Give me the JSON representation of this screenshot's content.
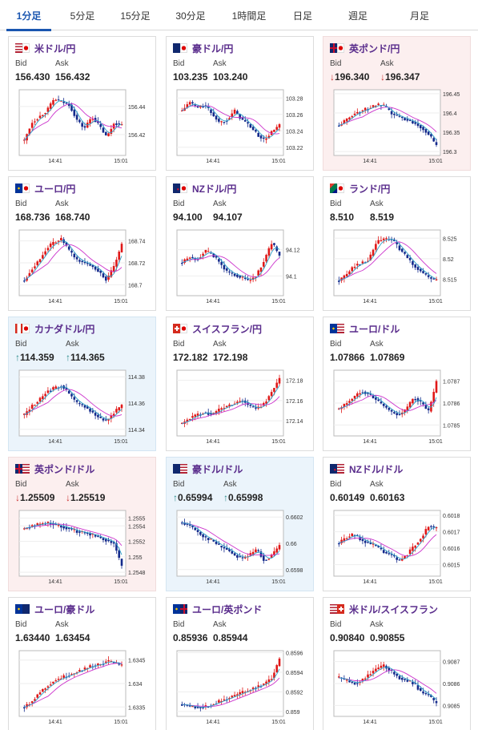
{
  "tabs": [
    "1分足",
    "5分足",
    "15分足",
    "30分足",
    "1時間足",
    "日足",
    "週足",
    "月足"
  ],
  "active_tab": 0,
  "labels": {
    "bid": "Bid",
    "ask": "Ask"
  },
  "colors": {
    "up": "#e01818",
    "down": "#142a8c",
    "ma1": "#cc33cc",
    "ma2": "#2ca0c8"
  },
  "cards": [
    {
      "name": "米ドル/円",
      "flags": [
        "us",
        "jp"
      ],
      "bid": "156.430",
      "ask": "156.432",
      "state": "none",
      "chart_data": {
        "type": "candlestick",
        "x_ticks": [
          "14:41",
          "15:01"
        ],
        "y_ticks": [
          "156.44",
          "156.42"
        ],
        "y_range": [
          156.405,
          156.452
        ],
        "shape": [
          0.2,
          0.5,
          0.6,
          0.7,
          0.9,
          0.85,
          0.8,
          0.55,
          0.4,
          0.6,
          0.45,
          0.25,
          0.5,
          0.45
        ]
      }
    },
    {
      "name": "豪ドル/円",
      "flags": [
        "au",
        "jp"
      ],
      "bid": "103.235",
      "ask": "103.240",
      "state": "none",
      "chart_data": {
        "type": "candlestick",
        "x_ticks": [
          "14:41",
          "15:01"
        ],
        "y_ticks": [
          "103.28",
          "103.26",
          "103.24",
          "103.22"
        ],
        "y_range": [
          103.21,
          103.29
        ],
        "shape": [
          0.7,
          0.85,
          0.75,
          0.8,
          0.65,
          0.5,
          0.55,
          0.7,
          0.55,
          0.45,
          0.3,
          0.2,
          0.35,
          0.45
        ]
      }
    },
    {
      "name": "英ポンド/円",
      "flags": [
        "gb",
        "jp"
      ],
      "bid": "196.340",
      "ask": "196.347",
      "arrow": "down",
      "state": "down",
      "chart_data": {
        "type": "candlestick",
        "x_ticks": [
          "14:41",
          "15:01"
        ],
        "y_ticks": [
          "196.45",
          "196.4",
          "196.35",
          "196.3"
        ],
        "y_range": [
          196.29,
          196.46
        ],
        "shape": [
          0.45,
          0.55,
          0.65,
          0.7,
          0.75,
          0.8,
          0.78,
          0.65,
          0.6,
          0.55,
          0.5,
          0.42,
          0.3,
          0.1
        ]
      }
    },
    {
      "name": "ユーロ/円",
      "flags": [
        "eu",
        "jp"
      ],
      "bid": "168.736",
      "ask": "168.740",
      "state": "none",
      "chart_data": {
        "type": "candlestick",
        "x_ticks": [
          "14:41",
          "15:01"
        ],
        "y_ticks": [
          "168.74",
          "168.72",
          "168.7"
        ],
        "y_range": [
          168.69,
          168.75
        ],
        "shape": [
          0.2,
          0.4,
          0.55,
          0.75,
          0.85,
          0.9,
          0.7,
          0.55,
          0.5,
          0.45,
          0.35,
          0.2,
          0.45,
          0.8
        ]
      }
    },
    {
      "name": "NZドル/円",
      "flags": [
        "nz",
        "jp"
      ],
      "bid": "94.100",
      "ask": "94.107",
      "state": "none",
      "chart_data": {
        "type": "candlestick",
        "x_ticks": [
          "14:41",
          "15:01"
        ],
        "y_ticks": [
          "94.12",
          "94.1"
        ],
        "y_range": [
          94.085,
          94.135
        ],
        "shape": [
          0.5,
          0.6,
          0.55,
          0.7,
          0.65,
          0.5,
          0.35,
          0.3,
          0.25,
          0.2,
          0.3,
          0.55,
          0.85,
          0.6
        ]
      }
    },
    {
      "name": "ランド/円",
      "flags": [
        "za",
        "jp"
      ],
      "bid": "8.510",
      "ask": "8.519",
      "state": "none",
      "chart_data": {
        "type": "candlestick",
        "x_ticks": [
          "14:41",
          "15:01"
        ],
        "y_ticks": [
          "8.525",
          "8.52",
          "8.515"
        ],
        "y_range": [
          8.511,
          8.527
        ],
        "shape": [
          0.2,
          0.3,
          0.45,
          0.5,
          0.55,
          0.85,
          0.9,
          0.9,
          0.75,
          0.6,
          0.45,
          0.35,
          0.25,
          0.2
        ]
      }
    },
    {
      "name": "カナダドル/円",
      "flags": [
        "ca",
        "jp"
      ],
      "bid": "114.359",
      "ask": "114.365",
      "arrow": "up",
      "state": "up",
      "chart_data": {
        "type": "candlestick",
        "x_ticks": [
          "14:41",
          "15:01"
        ],
        "y_ticks": [
          "114.38",
          "114.36",
          "114.34"
        ],
        "y_range": [
          114.335,
          114.385
        ],
        "shape": [
          0.3,
          0.45,
          0.55,
          0.7,
          0.75,
          0.8,
          0.65,
          0.5,
          0.45,
          0.35,
          0.25,
          0.2,
          0.35,
          0.45
        ]
      }
    },
    {
      "name": "スイスフラン/円",
      "flags": [
        "ch",
        "jp"
      ],
      "bid": "172.182",
      "ask": "172.198",
      "state": "none",
      "chart_data": {
        "type": "candlestick",
        "x_ticks": [
          "14:41",
          "15:01"
        ],
        "y_ticks": [
          "172.18",
          "172.16",
          "172.14"
        ],
        "y_range": [
          172.125,
          172.19
        ],
        "shape": [
          0.15,
          0.25,
          0.3,
          0.35,
          0.3,
          0.4,
          0.45,
          0.5,
          0.55,
          0.45,
          0.4,
          0.5,
          0.7,
          0.9
        ]
      }
    },
    {
      "name": "ユーロ/ドル",
      "flags": [
        "eu",
        "us"
      ],
      "bid": "1.07866",
      "ask": "1.07869",
      "state": "none",
      "chart_data": {
        "type": "candlestick",
        "x_ticks": [
          "14:41",
          "15:01"
        ],
        "y_ticks": [
          "1.0787",
          "1.0786",
          "1.0785"
        ],
        "y_range": [
          1.07845,
          1.07875
        ],
        "shape": [
          0.4,
          0.5,
          0.6,
          0.7,
          0.65,
          0.55,
          0.45,
          0.35,
          0.3,
          0.4,
          0.6,
          0.5,
          0.35,
          0.85
        ]
      }
    },
    {
      "name": "英ポンド/ドル",
      "flags": [
        "gb",
        "us"
      ],
      "bid": "1.25509",
      "ask": "1.25519",
      "arrow": "down",
      "state": "down",
      "chart_data": {
        "type": "candlestick",
        "x_ticks": [
          "14:41",
          "15:01"
        ],
        "y_ticks": [
          "1.2555",
          "1.2554",
          "1.2552",
          "1.255",
          "1.2548"
        ],
        "y_range": [
          1.25475,
          1.2556
        ],
        "shape": [
          0.75,
          0.8,
          0.82,
          0.85,
          0.82,
          0.78,
          0.75,
          0.7,
          0.68,
          0.65,
          0.6,
          0.55,
          0.5,
          0.1
        ]
      }
    },
    {
      "name": "豪ドル/ドル",
      "flags": [
        "au",
        "us"
      ],
      "bid": "0.65994",
      "ask": "0.65998",
      "arrow": "up",
      "state": "up",
      "chart_data": {
        "type": "candlestick",
        "x_ticks": [
          "14:41",
          "15:01"
        ],
        "y_ticks": [
          "0.6602",
          "0.66",
          "0.6598"
        ],
        "y_range": [
          0.65975,
          0.66025
        ],
        "shape": [
          0.85,
          0.8,
          0.7,
          0.6,
          0.55,
          0.45,
          0.4,
          0.3,
          0.25,
          0.3,
          0.4,
          0.2,
          0.3,
          0.45
        ]
      }
    },
    {
      "name": "NZドル/ドル",
      "flags": [
        "nz",
        "us"
      ],
      "bid": "0.60149",
      "ask": "0.60163",
      "state": "none",
      "chart_data": {
        "type": "candlestick",
        "x_ticks": [
          "14:41",
          "15:01"
        ],
        "y_ticks": [
          "0.6018",
          "0.6017",
          "0.6016",
          "0.6015"
        ],
        "y_range": [
          0.60143,
          0.60183
        ],
        "shape": [
          0.5,
          0.6,
          0.65,
          0.55,
          0.5,
          0.45,
          0.35,
          0.3,
          0.2,
          0.3,
          0.45,
          0.6,
          0.8,
          0.75
        ]
      }
    },
    {
      "name": "ユーロ/豪ドル",
      "flags": [
        "eu",
        "au"
      ],
      "bid": "1.63440",
      "ask": "1.63454",
      "state": "none",
      "chart_data": {
        "type": "candlestick",
        "x_ticks": [
          "14:41",
          "15:01"
        ],
        "y_ticks": [
          "1.6345",
          "1.634",
          "1.6335"
        ],
        "y_range": [
          1.6333,
          1.6347
        ],
        "shape": [
          0.1,
          0.2,
          0.35,
          0.45,
          0.55,
          0.6,
          0.65,
          0.7,
          0.75,
          0.8,
          0.82,
          0.88,
          0.85,
          0.8
        ]
      }
    },
    {
      "name": "ユーロ/英ポンド",
      "flags": [
        "eu",
        "gb"
      ],
      "bid": "0.85936",
      "ask": "0.85944",
      "state": "none",
      "chart_data": {
        "type": "candlestick",
        "x_ticks": [
          "14:41",
          "15:01"
        ],
        "y_ticks": [
          "0.8596",
          "0.8594",
          "0.8592",
          "0.859"
        ],
        "y_range": [
          0.85895,
          0.85962
        ],
        "shape": [
          0.15,
          0.12,
          0.1,
          0.1,
          0.15,
          0.2,
          0.25,
          0.3,
          0.35,
          0.4,
          0.45,
          0.5,
          0.6,
          0.9
        ]
      }
    },
    {
      "name": "米ドル/スイスフラン",
      "flags": [
        "us",
        "ch"
      ],
      "bid": "0.90840",
      "ask": "0.90855",
      "state": "none",
      "chart_data": {
        "type": "candlestick",
        "x_ticks": [
          "14:41",
          "15:01"
        ],
        "y_ticks": [
          "0.9087",
          "0.9086",
          "0.9085"
        ],
        "y_range": [
          0.90845,
          0.90875
        ],
        "shape": [
          0.6,
          0.55,
          0.5,
          0.55,
          0.65,
          0.75,
          0.8,
          0.7,
          0.6,
          0.55,
          0.5,
          0.35,
          0.3,
          0.15
        ]
      }
    }
  ]
}
